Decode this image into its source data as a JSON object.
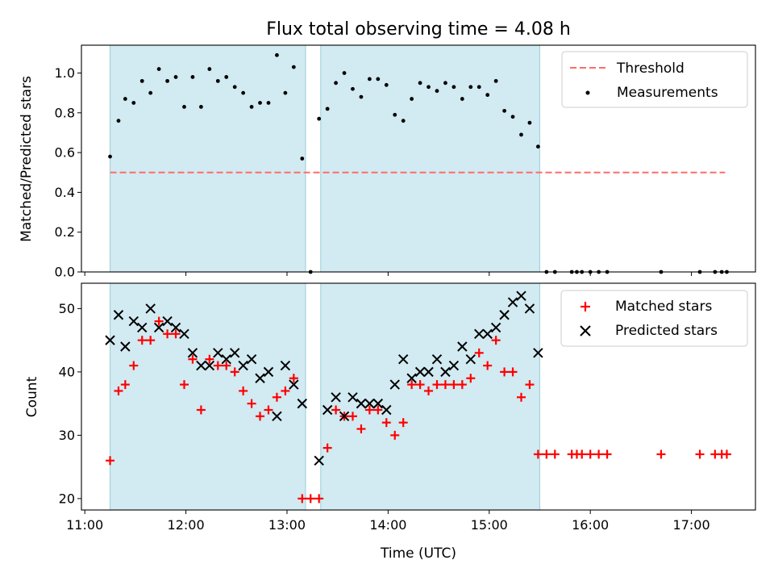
{
  "chart_data": [
    {
      "type": "scatter",
      "title": "Flux total observing time = 4.08 h",
      "xlabel": "",
      "ylabel": "Matched/Predicted stars",
      "ylim": [
        0,
        1.14
      ],
      "yticks": [
        "0.0",
        "0.2",
        "0.4",
        "0.6",
        "0.8",
        "1.0"
      ],
      "legend_position": "top-right",
      "threshold": {
        "name": "Threshold",
        "y": 0.5,
        "x_start": "11:15",
        "x_end": "17:20",
        "color": "#ff6b6b"
      },
      "shaded_intervals": [
        [
          "11:15",
          "13:11"
        ],
        [
          "13:20",
          "15:30"
        ]
      ],
      "series": [
        {
          "name": "Measurements",
          "color": "#000000",
          "points": [
            [
              "11:15",
              0.58
            ],
            [
              "11:20",
              0.76
            ],
            [
              "11:24",
              0.87
            ],
            [
              "11:29",
              0.85
            ],
            [
              "11:34",
              0.96
            ],
            [
              "11:39",
              0.9
            ],
            [
              "11:44",
              1.02
            ],
            [
              "11:49",
              0.96
            ],
            [
              "11:54",
              0.98
            ],
            [
              "11:59",
              0.83
            ],
            [
              "12:04",
              0.98
            ],
            [
              "12:09",
              0.83
            ],
            [
              "12:14",
              1.02
            ],
            [
              "12:19",
              0.96
            ],
            [
              "12:24",
              0.98
            ],
            [
              "12:29",
              0.93
            ],
            [
              "12:34",
              0.9
            ],
            [
              "12:39",
              0.83
            ],
            [
              "12:44",
              0.85
            ],
            [
              "12:49",
              0.85
            ],
            [
              "12:54",
              1.09
            ],
            [
              "12:59",
              0.9
            ],
            [
              "13:04",
              1.03
            ],
            [
              "13:09",
              0.57
            ],
            [
              "13:14",
              0.0
            ],
            [
              "13:19",
              0.77
            ],
            [
              "13:24",
              0.82
            ],
            [
              "13:29",
              0.95
            ],
            [
              "13:34",
              1.0
            ],
            [
              "13:39",
              0.92
            ],
            [
              "13:44",
              0.88
            ],
            [
              "13:49",
              0.97
            ],
            [
              "13:54",
              0.97
            ],
            [
              "13:59",
              0.94
            ],
            [
              "14:04",
              0.79
            ],
            [
              "14:09",
              0.76
            ],
            [
              "14:14",
              0.87
            ],
            [
              "14:19",
              0.95
            ],
            [
              "14:24",
              0.93
            ],
            [
              "14:29",
              0.91
            ],
            [
              "14:34",
              0.95
            ],
            [
              "14:39",
              0.93
            ],
            [
              "14:44",
              0.87
            ],
            [
              "14:49",
              0.93
            ],
            [
              "14:54",
              0.93
            ],
            [
              "14:59",
              0.89
            ],
            [
              "15:04",
              0.96
            ],
            [
              "15:09",
              0.81
            ],
            [
              "15:14",
              0.78
            ],
            [
              "15:19",
              0.69
            ],
            [
              "15:24",
              0.75
            ],
            [
              "15:29",
              0.63
            ],
            [
              "15:34",
              0.0
            ],
            [
              "15:39",
              0.0
            ],
            [
              "15:49",
              0.0
            ],
            [
              "15:52",
              0.0
            ],
            [
              "15:55",
              0.0
            ],
            [
              "16:00",
              0.0
            ],
            [
              "16:05",
              0.0
            ],
            [
              "16:10",
              0.0
            ],
            [
              "16:42",
              0.0
            ],
            [
              "17:05",
              0.0
            ],
            [
              "17:14",
              0.0
            ],
            [
              "17:18",
              0.0
            ],
            [
              "17:21",
              0.0
            ]
          ]
        }
      ]
    },
    {
      "type": "scatter",
      "title": "",
      "xlabel": "Time (UTC)",
      "ylabel": "Count",
      "xlim": [
        "10:58",
        "17:38"
      ],
      "ylim": [
        18.2,
        54
      ],
      "xticks": [
        "11:00",
        "12:00",
        "13:00",
        "14:00",
        "15:00",
        "16:00",
        "17:00"
      ],
      "yticks": [
        "20",
        "30",
        "40",
        "50"
      ],
      "legend_position": "top-right",
      "shaded_intervals": [
        [
          "11:15",
          "13:11"
        ],
        [
          "13:20",
          "15:30"
        ]
      ],
      "series": [
        {
          "name": "Matched stars",
          "marker": "+",
          "color": "#ff0000",
          "points": [
            [
              "11:15",
              26
            ],
            [
              "11:20",
              37
            ],
            [
              "11:24",
              38
            ],
            [
              "11:29",
              41
            ],
            [
              "11:34",
              45
            ],
            [
              "11:39",
              45
            ],
            [
              "11:44",
              48
            ],
            [
              "11:49",
              46
            ],
            [
              "11:54",
              46
            ],
            [
              "11:59",
              38
            ],
            [
              "12:04",
              42
            ],
            [
              "12:09",
              34
            ],
            [
              "12:14",
              42
            ],
            [
              "12:19",
              41
            ],
            [
              "12:24",
              41
            ],
            [
              "12:29",
              40
            ],
            [
              "12:34",
              37
            ],
            [
              "12:39",
              35
            ],
            [
              "12:44",
              33
            ],
            [
              "12:49",
              34
            ],
            [
              "12:54",
              36
            ],
            [
              "12:59",
              37
            ],
            [
              "13:04",
              39
            ],
            [
              "13:09",
              20
            ],
            [
              "13:14",
              20
            ],
            [
              "13:19",
              20
            ],
            [
              "13:24",
              28
            ],
            [
              "13:29",
              34
            ],
            [
              "13:34",
              33
            ],
            [
              "13:39",
              33
            ],
            [
              "13:44",
              31
            ],
            [
              "13:49",
              34
            ],
            [
              "13:54",
              34
            ],
            [
              "13:59",
              32
            ],
            [
              "14:04",
              30
            ],
            [
              "14:09",
              32
            ],
            [
              "14:14",
              38
            ],
            [
              "14:19",
              38
            ],
            [
              "14:24",
              37
            ],
            [
              "14:29",
              38
            ],
            [
              "14:34",
              38
            ],
            [
              "14:39",
              38
            ],
            [
              "14:44",
              38
            ],
            [
              "14:49",
              39
            ],
            [
              "14:54",
              43
            ],
            [
              "14:59",
              41
            ],
            [
              "15:04",
              45
            ],
            [
              "15:09",
              40
            ],
            [
              "15:14",
              40
            ],
            [
              "15:19",
              36
            ],
            [
              "15:24",
              38
            ],
            [
              "15:29",
              27
            ],
            [
              "15:34",
              27
            ],
            [
              "15:39",
              27
            ],
            [
              "15:49",
              27
            ],
            [
              "15:52",
              27
            ],
            [
              "15:55",
              27
            ],
            [
              "16:00",
              27
            ],
            [
              "16:05",
              27
            ],
            [
              "16:10",
              27
            ],
            [
              "16:42",
              27
            ],
            [
              "17:05",
              27
            ],
            [
              "17:14",
              27
            ],
            [
              "17:18",
              27
            ],
            [
              "17:21",
              27
            ]
          ]
        },
        {
          "name": "Predicted stars",
          "marker": "x",
          "color": "#000000",
          "points": [
            [
              "11:15",
              45
            ],
            [
              "11:20",
              49
            ],
            [
              "11:24",
              44
            ],
            [
              "11:29",
              48
            ],
            [
              "11:34",
              47
            ],
            [
              "11:39",
              50
            ],
            [
              "11:44",
              47
            ],
            [
              "11:49",
              48
            ],
            [
              "11:54",
              47
            ],
            [
              "11:59",
              46
            ],
            [
              "12:04",
              43
            ],
            [
              "12:09",
              41
            ],
            [
              "12:14",
              41
            ],
            [
              "12:19",
              43
            ],
            [
              "12:24",
              42
            ],
            [
              "12:29",
              43
            ],
            [
              "12:34",
              41
            ],
            [
              "12:39",
              42
            ],
            [
              "12:44",
              39
            ],
            [
              "12:49",
              40
            ],
            [
              "12:54",
              33
            ],
            [
              "12:59",
              41
            ],
            [
              "13:04",
              38
            ],
            [
              "13:09",
              35
            ],
            [
              "13:19",
              26
            ],
            [
              "13:24",
              34
            ],
            [
              "13:29",
              36
            ],
            [
              "13:34",
              33
            ],
            [
              "13:39",
              36
            ],
            [
              "13:44",
              35
            ],
            [
              "13:49",
              35
            ],
            [
              "13:54",
              35
            ],
            [
              "13:59",
              34
            ],
            [
              "14:04",
              38
            ],
            [
              "14:09",
              42
            ],
            [
              "14:14",
              39
            ],
            [
              "14:19",
              40
            ],
            [
              "14:24",
              40
            ],
            [
              "14:29",
              42
            ],
            [
              "14:34",
              40
            ],
            [
              "14:39",
              41
            ],
            [
              "14:44",
              44
            ],
            [
              "14:49",
              42
            ],
            [
              "14:54",
              46
            ],
            [
              "14:59",
              46
            ],
            [
              "15:04",
              47
            ],
            [
              "15:09",
              49
            ],
            [
              "15:14",
              51
            ],
            [
              "15:19",
              52
            ],
            [
              "15:24",
              50
            ],
            [
              "15:29",
              43
            ]
          ]
        }
      ]
    }
  ]
}
